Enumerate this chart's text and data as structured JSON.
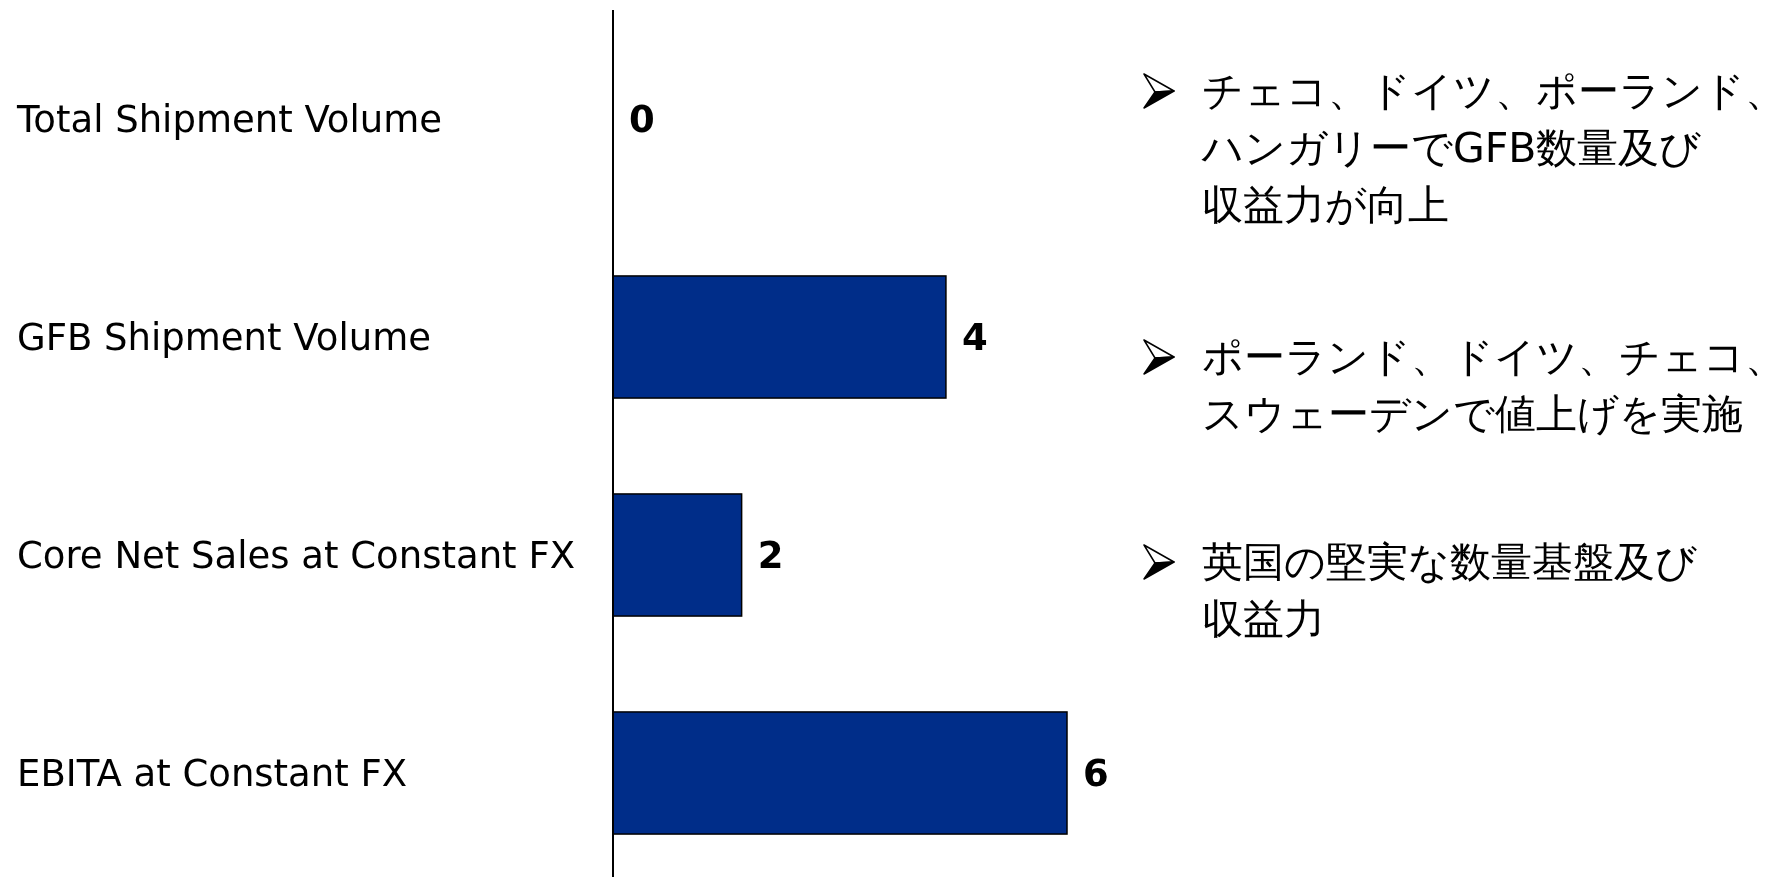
{
  "chart_data": {
    "type": "bar",
    "orientation": "horizontal",
    "categories": [
      "Total Shipment Volume",
      "GFB Shipment Volume",
      "Core Net Sales at Constant FX",
      "EBITA at Constant FX"
    ],
    "values": [
      0,
      4.4,
      1.7,
      6
    ],
    "value_labels": [
      "0",
      "4",
      "2",
      "6"
    ],
    "color": "#002d89",
    "tick_labels": "y",
    "annotations": [
      "チェコ、ドイツ、ポーランド、ハンガリーでGFB数量及び収益力が向上",
      "ポーランド、ドイツ、チェコ、スウェーデンで値上げを実施",
      "英国の堅実な数量基盤及び収益力"
    ]
  }
}
